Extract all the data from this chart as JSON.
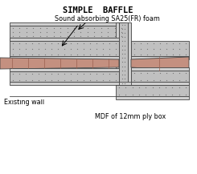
{
  "title": "SIMPLE  BAFFLE",
  "title_fontsize": 7.5,
  "bg_color": "#ffffff",
  "foam_fill": "#c0c0c0",
  "foam_dots": "#777777",
  "wall_fill": "#c49080",
  "wall_line": "#9a6050",
  "mdf_fill": "#d0d0d0",
  "mdf_border": "#444444",
  "label_foam": "Sound absorbing SA25(FR) foam",
  "label_wall": "Existing wall",
  "label_mdf": "MDF of 12mm ply box",
  "label_fontsize": 5.8,
  "text_color": "#000000",
  "arrow_color": "#000000"
}
